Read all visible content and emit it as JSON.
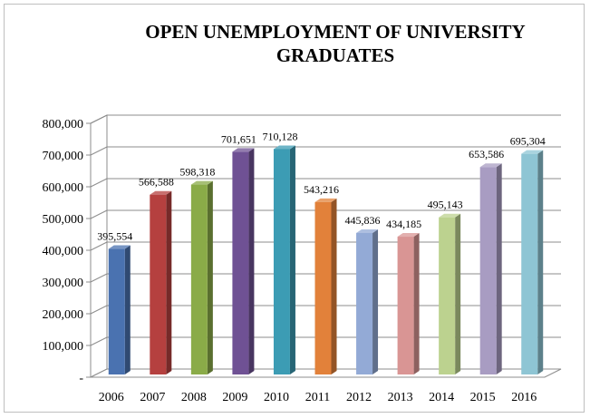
{
  "chart_data": {
    "type": "bar",
    "title_lines": [
      "OPEN UNEMPLOYMENT OF UNIVERSITY",
      "GRADUATES"
    ],
    "categories": [
      "2006",
      "2007",
      "2008",
      "2009",
      "2010",
      "2011",
      "2012",
      "2013",
      "2014",
      "2015",
      "2016"
    ],
    "values": [
      395554,
      566588,
      598318,
      701651,
      710128,
      543216,
      445836,
      434185,
      495143,
      653586,
      695304
    ],
    "value_labels": [
      "395,554",
      "566,588",
      "598,318",
      "701,651",
      "710,128",
      "543,216",
      "445,836",
      "434,185",
      "495,143",
      "653,586",
      "695,304"
    ],
    "ylim": [
      0,
      800000
    ],
    "y_ticks": [
      0,
      100000,
      200000,
      300000,
      400000,
      500000,
      600000,
      700000,
      800000
    ],
    "y_tick_labels": [
      "-",
      "100,000",
      "200,000",
      "300,000",
      "400,000",
      "500,000",
      "600,000",
      "700,000",
      "800,000"
    ],
    "xlabel": "",
    "ylabel": "",
    "grid": true,
    "legend": "none",
    "bar_colors": [
      "#4a72b0",
      "#b5403f",
      "#8aab48",
      "#6f5194",
      "#3c9cb4",
      "#e2813a",
      "#93aad6",
      "#d99594",
      "#bcd28f",
      "#a89cc2",
      "#8ec5d4"
    ]
  }
}
